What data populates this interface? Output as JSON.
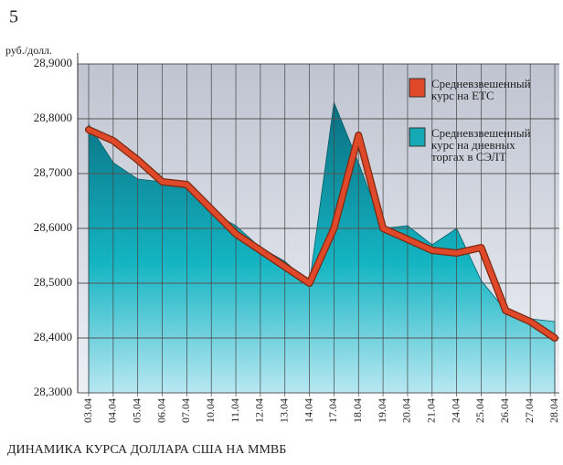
{
  "page_number": "5",
  "chart_data": {
    "type": "line_area",
    "title": "ДИНАМИКА КУРСА ДОЛЛАРА США НА ММВБ",
    "y_label": "руб./долл.",
    "categories": [
      "03.04",
      "04.04",
      "05.04",
      "06.04",
      "07.04",
      "10.04",
      "11.04",
      "12.04",
      "13.04",
      "14.04",
      "17.04",
      "18.04",
      "19.04",
      "20.04",
      "21.04",
      "24.04",
      "25.04",
      "26.04",
      "27.04",
      "28.04"
    ],
    "series": [
      {
        "name": "Средневзвешенный курс на ЕТС",
        "kind": "line",
        "color": "#e0482a",
        "values": [
          28.78,
          28.76,
          28.725,
          28.685,
          28.68,
          28.635,
          28.59,
          28.56,
          28.53,
          28.5,
          28.6,
          28.77,
          28.6,
          28.58,
          28.56,
          28.555,
          28.565,
          28.45,
          28.43,
          28.4
        ]
      },
      {
        "name": "Средневзвешенный курс на дневных торгах в СЭЛТ",
        "kind": "area",
        "color": "#14a9b5",
        "values": [
          28.79,
          28.72,
          28.69,
          28.685,
          28.68,
          28.63,
          28.605,
          28.565,
          28.54,
          28.5,
          28.83,
          28.72,
          28.6,
          28.605,
          28.57,
          28.6,
          28.505,
          28.45,
          28.435,
          28.43
        ]
      }
    ],
    "ylim": [
      28.3,
      28.9
    ],
    "yticks": [
      {
        "value": 28.3,
        "label": "28,3000"
      },
      {
        "value": 28.4,
        "label": "28,4000"
      },
      {
        "value": 28.5,
        "label": "28,5000"
      },
      {
        "value": 28.6,
        "label": "28,6000"
      },
      {
        "value": 28.7,
        "label": "28,7000"
      },
      {
        "value": 28.8,
        "label": "28,8000"
      },
      {
        "value": 28.9,
        "label": "28,9000"
      }
    ],
    "grid": true
  }
}
